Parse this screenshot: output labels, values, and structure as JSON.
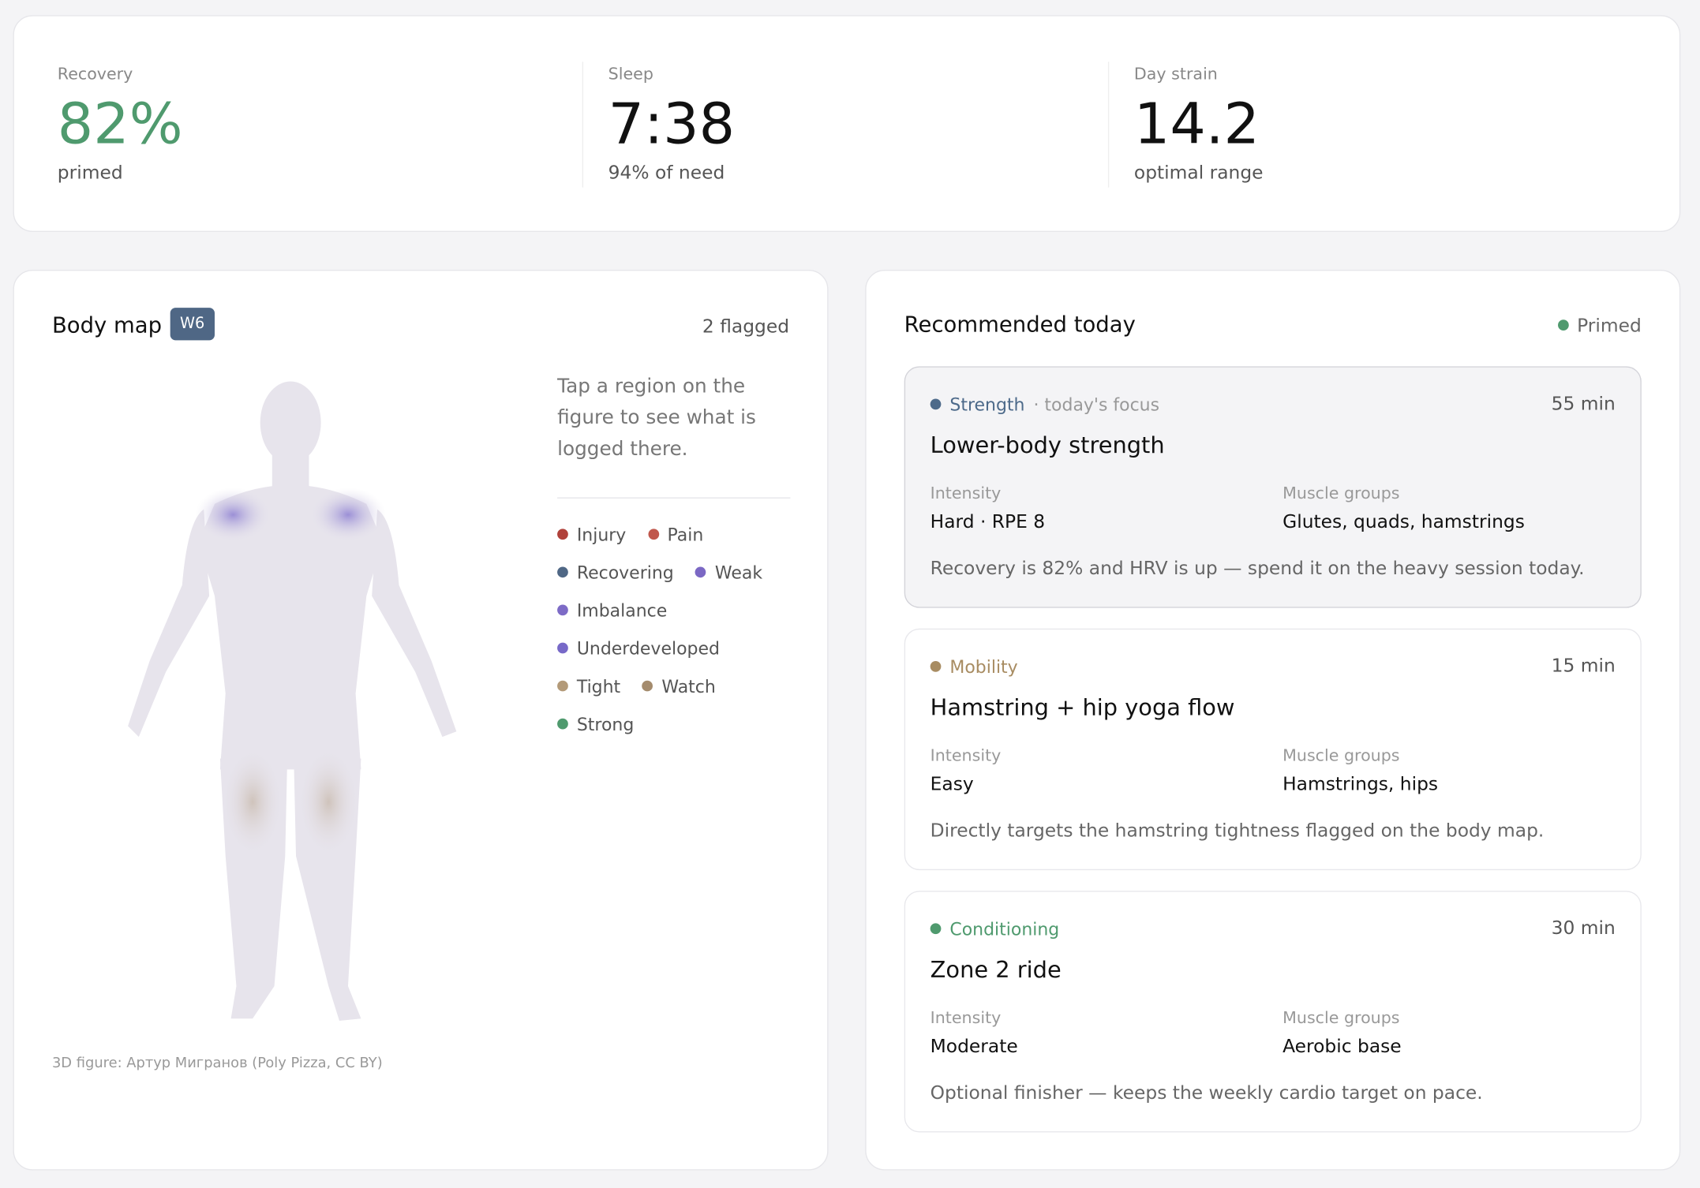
{
  "stats": [
    {
      "label": "Recovery",
      "value": "82%",
      "note": "primed",
      "color": "#4f9a6e"
    },
    {
      "label": "Sleep",
      "value": "7:38",
      "note": "94% of need",
      "color": "#111111"
    },
    {
      "label": "Day strain",
      "value": "14.2",
      "note": "optimal range",
      "color": "#111111"
    }
  ],
  "body_map": {
    "title": "Body map",
    "badge": "W6",
    "flagged": "2 flagged",
    "hint": "Tap a region on the figure to see what is logged there.",
    "legend": [
      [
        {
          "label": "Injury",
          "color": "#b0413a"
        },
        {
          "label": "Pain",
          "color": "#c0574c"
        }
      ],
      [
        {
          "label": "Recovering",
          "color": "#4f6785"
        },
        {
          "label": "Weak",
          "color": "#7b68c4"
        }
      ],
      [
        {
          "label": "Imbalance",
          "color": "#7d6bc6"
        }
      ],
      [
        {
          "label": "Underdeveloped",
          "color": "#7769c8"
        }
      ],
      [
        {
          "label": "Tight",
          "color": "#b39a78"
        },
        {
          "label": "Watch",
          "color": "#a48b6d"
        }
      ],
      [
        {
          "label": "Strong",
          "color": "#4f9a6e"
        }
      ]
    ],
    "credit": "3D figure: Артур Мигранов (Poly Pizza, CC BY)"
  },
  "recommendations": {
    "title": "Recommended today",
    "status": "Primed",
    "status_color": "#4f9a6e",
    "items": [
      {
        "category": "Strength",
        "category_color": "#4d6a8a",
        "focus": "· today's focus",
        "duration": "55 min",
        "title": "Lower-body strength",
        "intensity_label": "Intensity",
        "intensity": "Hard · RPE 8",
        "muscle_label": "Muscle groups",
        "muscles": "Glutes, quads, hamstrings",
        "note": "Recovery is 82% and HRV is up — spend it on the heavy session today.",
        "highlighted": true
      },
      {
        "category": "Mobility",
        "category_color": "#a88c62",
        "duration": "15 min",
        "title": "Hamstring + hip yoga flow",
        "intensity_label": "Intensity",
        "intensity": "Easy",
        "muscle_label": "Muscle groups",
        "muscles": "Hamstrings, hips",
        "note": "Directly targets the hamstring tightness flagged on the body map.",
        "highlighted": false
      },
      {
        "category": "Conditioning",
        "category_color": "#4f9a6e",
        "duration": "30 min",
        "title": "Zone 2 ride",
        "intensity_label": "Intensity",
        "intensity": "Moderate",
        "muscle_label": "Muscle groups",
        "muscles": "Aerobic base",
        "note": "Optional finisher — keeps the weekly cardio target on pace.",
        "highlighted": false
      }
    ]
  }
}
